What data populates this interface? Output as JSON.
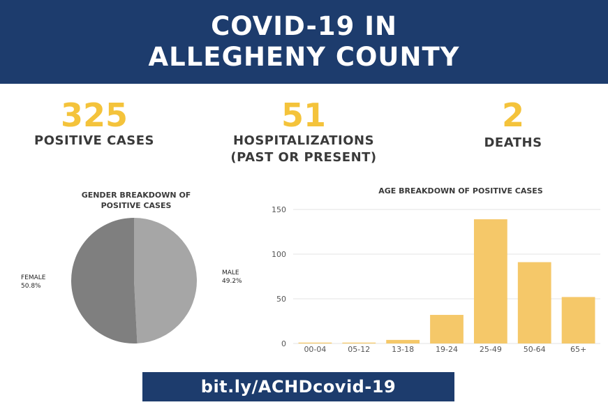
{
  "header": {
    "title_line1": "COVID-19 IN",
    "title_line2": "ALLEGHENY COUNTY",
    "background": "#1d3c6d"
  },
  "stats": {
    "positive": {
      "value": "325",
      "label": "POSITIVE CASES"
    },
    "hospitalizations": {
      "value": "51",
      "label_line1": "HOSPITALIZATIONS",
      "label_line2": "(PAST OR PRESENT)"
    },
    "deaths": {
      "value": "2",
      "label": "DEATHS"
    }
  },
  "accent_color": "#f4c33b",
  "chart_data": [
    {
      "type": "pie",
      "title_line1": "GENDER BREAKDOWN OF",
      "title_line2": "POSITIVE CASES",
      "slices": [
        {
          "name": "FEMALE",
          "value": 50.8,
          "label": "50.8%",
          "color": "#7f7f7f"
        },
        {
          "name": "MALE",
          "value": 49.2,
          "label": "49.2%",
          "color": "#a6a6a6"
        }
      ]
    },
    {
      "type": "bar",
      "title": "AGE BREAKDOWN OF POSITIVE CASES",
      "categories": [
        "00-04",
        "05-12",
        "13-18",
        "19-24",
        "25-49",
        "50-64",
        "65+"
      ],
      "values": [
        1,
        1,
        4,
        32,
        139,
        91,
        52
      ],
      "ylim": [
        0,
        150
      ],
      "yticks": [
        0,
        50,
        100,
        150
      ],
      "grid": true,
      "color": "#f5c869"
    }
  ],
  "footer": {
    "link": "bit.ly/ACHDcovid-19"
  }
}
